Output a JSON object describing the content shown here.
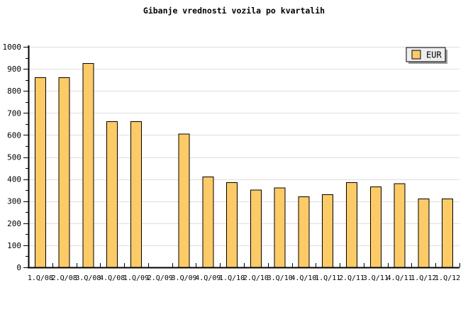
{
  "chart_data": {
    "type": "bar",
    "title": "Gibanje vrednosti vozila po kvartalih",
    "xlabel": "",
    "ylabel": "",
    "categories": [
      "1.Q/08",
      "2.Q/08",
      "3.Q/08",
      "4.Q/08",
      "1.Q/09",
      "2.Q/09",
      "3.Q/09",
      "4.Q/09",
      "1.Q/10",
      "2.Q/10",
      "3.Q/10",
      "4.Q/10",
      "1.Q/11",
      "2.Q/11",
      "3.Q/11",
      "4.Q/11",
      "1.Q/12",
      "1.Q/12"
    ],
    "series": [
      {
        "name": "EUR",
        "values": [
          860,
          860,
          925,
          660,
          660,
          0,
          605,
          410,
          385,
          350,
          360,
          320,
          330,
          385,
          365,
          380,
          310,
          310
        ]
      }
    ],
    "ylim": [
      0,
      1000
    ],
    "y_major_ticks": [
      0,
      100,
      200,
      300,
      400,
      500,
      600,
      700,
      800,
      900,
      1000
    ],
    "y_minor_step": 50,
    "grid": "horizontal",
    "legend_position": "top-right",
    "colors": {
      "background": "#ffffff",
      "bar_fill": "#FCCA66",
      "bar_border": "#000000",
      "grid_line": "#DEDEDE",
      "axis": "#000000",
      "text": "#000000",
      "legend_fill": "#EEEEEE",
      "legend_border": "#000000",
      "legend_shadow": "#999999"
    }
  }
}
